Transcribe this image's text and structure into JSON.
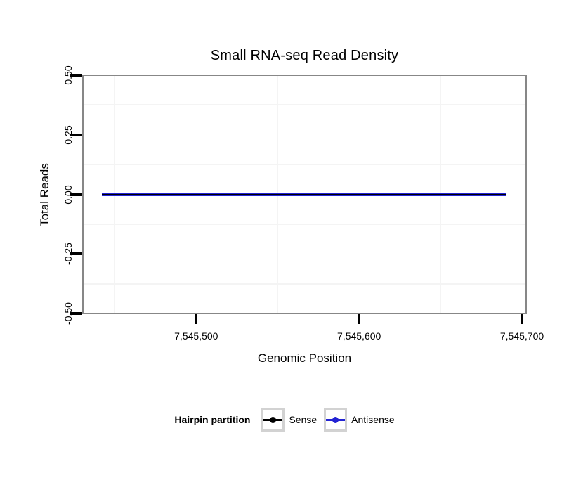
{
  "colors": {
    "background": "#ffffff",
    "panel_border": "#878787",
    "grid_minor": "#f4f4f4",
    "tick": "#000000",
    "text": "#000000",
    "legend_key_border": "#d2d2d2",
    "sense": "#000000",
    "antisense": "#2323d3"
  },
  "chart_data": {
    "type": "line",
    "title": "Small RNA-seq Read Density",
    "xlabel": "Genomic Position",
    "ylabel": "Total Reads",
    "x_domain": [
      7545430,
      7545703
    ],
    "y_domain": [
      -0.503,
      0.503
    ],
    "x_ticks": {
      "values": [
        7545500,
        7545600,
        7545700
      ],
      "labels": [
        "7,545,500",
        "7,545,600",
        "7,545,700"
      ]
    },
    "y_ticks": {
      "values": [
        0.5,
        0.25,
        0,
        -0.25,
        -0.5
      ],
      "labels": [
        "0.50",
        "0.25",
        "0.00",
        "-0.25",
        "-0.50"
      ]
    },
    "x_minor_gridlines": [
      7545450,
      7545550,
      7545650
    ],
    "y_minor_gridlines": [
      0.375,
      0.125,
      -0.125,
      -0.375
    ],
    "grid": "minor-only",
    "series": [
      {
        "name": "Sense",
        "color": "#000000",
        "x": [
          7545442,
          7545690
        ],
        "y": [
          0,
          0
        ]
      },
      {
        "name": "Antisense",
        "color": "#2323d3",
        "x": [
          7545442,
          7545690
        ],
        "y": [
          0,
          0
        ]
      }
    ],
    "legend": {
      "title": "Hairpin partition",
      "position": "bottom",
      "entries": [
        "Sense",
        "Antisense"
      ]
    }
  }
}
